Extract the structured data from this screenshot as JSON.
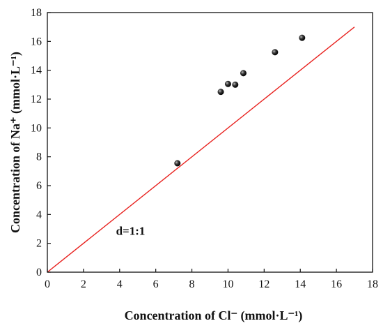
{
  "chart_data": {
    "type": "scatter",
    "xlabel": "Concentration of Cl⁻ (mmol·L⁻¹)",
    "ylabel": "Concentration of Na⁺ (mmol·L⁻¹)",
    "xlim": [
      0,
      18
    ],
    "ylim": [
      0,
      18
    ],
    "xticks": [
      0,
      2,
      4,
      6,
      8,
      10,
      12,
      14,
      16,
      18
    ],
    "yticks": [
      0,
      2,
      4,
      6,
      8,
      10,
      12,
      14,
      16,
      18
    ],
    "grid": false,
    "series": [
      {
        "points": [
          {
            "x": 7.2,
            "y": 7.55
          },
          {
            "x": 9.6,
            "y": 12.5
          },
          {
            "x": 10.0,
            "y": 13.05
          },
          {
            "x": 10.4,
            "y": 13.0
          },
          {
            "x": 10.85,
            "y": 13.8
          },
          {
            "x": 12.6,
            "y": 15.25
          },
          {
            "x": 14.1,
            "y": 16.25
          }
        ]
      }
    ],
    "reference_line": {
      "x": [
        0,
        17
      ],
      "y": [
        0,
        17
      ],
      "color": "#e8211e"
    },
    "annotation": {
      "text": "d=1:1",
      "x": 3.8,
      "y": 2.6
    },
    "marker_color": "#111111"
  }
}
